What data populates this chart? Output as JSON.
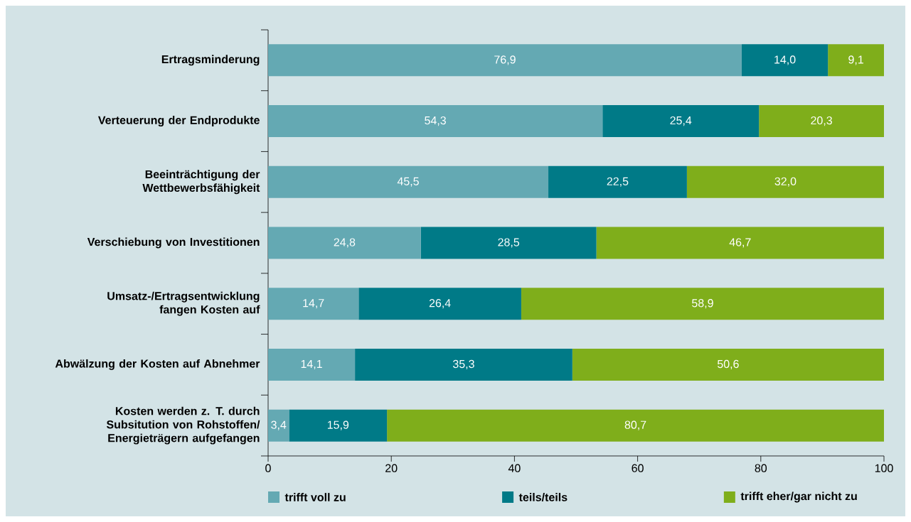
{
  "chart_data": {
    "type": "bar",
    "orientation": "horizontal",
    "stacked": true,
    "categories": [
      "Ertragsminderung",
      "Verteuerung der Endprodukte",
      "Beeinträchtigung der Wettbewerbsfähigkeit",
      "Verschiebung von Investitionen",
      "Umsatz-/Ertragsentwicklung fangen Kosten auf",
      "Abwälzung der Kosten auf Abnehmer",
      "Kosten werden z. T. durch Subsitution von Rohstoffen/ Energieträgern aufgefangen"
    ],
    "series": [
      {
        "name": "trifft voll zu",
        "color": "#64a9b3",
        "values": [
          76.9,
          54.3,
          45.5,
          24.8,
          14.7,
          14.1,
          3.4
        ],
        "value_labels": [
          "76,9",
          "54,3",
          "45,5",
          "24,8",
          "14,7",
          "14,1",
          "3,4"
        ]
      },
      {
        "name": "teils/teils",
        "color": "#007a87",
        "values": [
          14.0,
          25.4,
          22.5,
          28.5,
          26.4,
          35.3,
          15.9
        ],
        "value_labels": [
          "14,0",
          "25,4",
          "22,5",
          "28,5",
          "26,4",
          "35,3",
          "15,9"
        ]
      },
      {
        "name": "trifft eher/gar nicht zu",
        "color": "#7fae1b",
        "values": [
          9.1,
          20.3,
          32.0,
          46.7,
          58.9,
          50.6,
          80.7
        ],
        "value_labels": [
          "9,1",
          "20,3",
          "32,0",
          "46,7",
          "58,9",
          "50,6",
          "80,7"
        ]
      }
    ],
    "xlim": [
      0,
      100
    ],
    "xticks": [
      0,
      20,
      40,
      60,
      80,
      100
    ],
    "legend": "bottom",
    "grid": false
  }
}
